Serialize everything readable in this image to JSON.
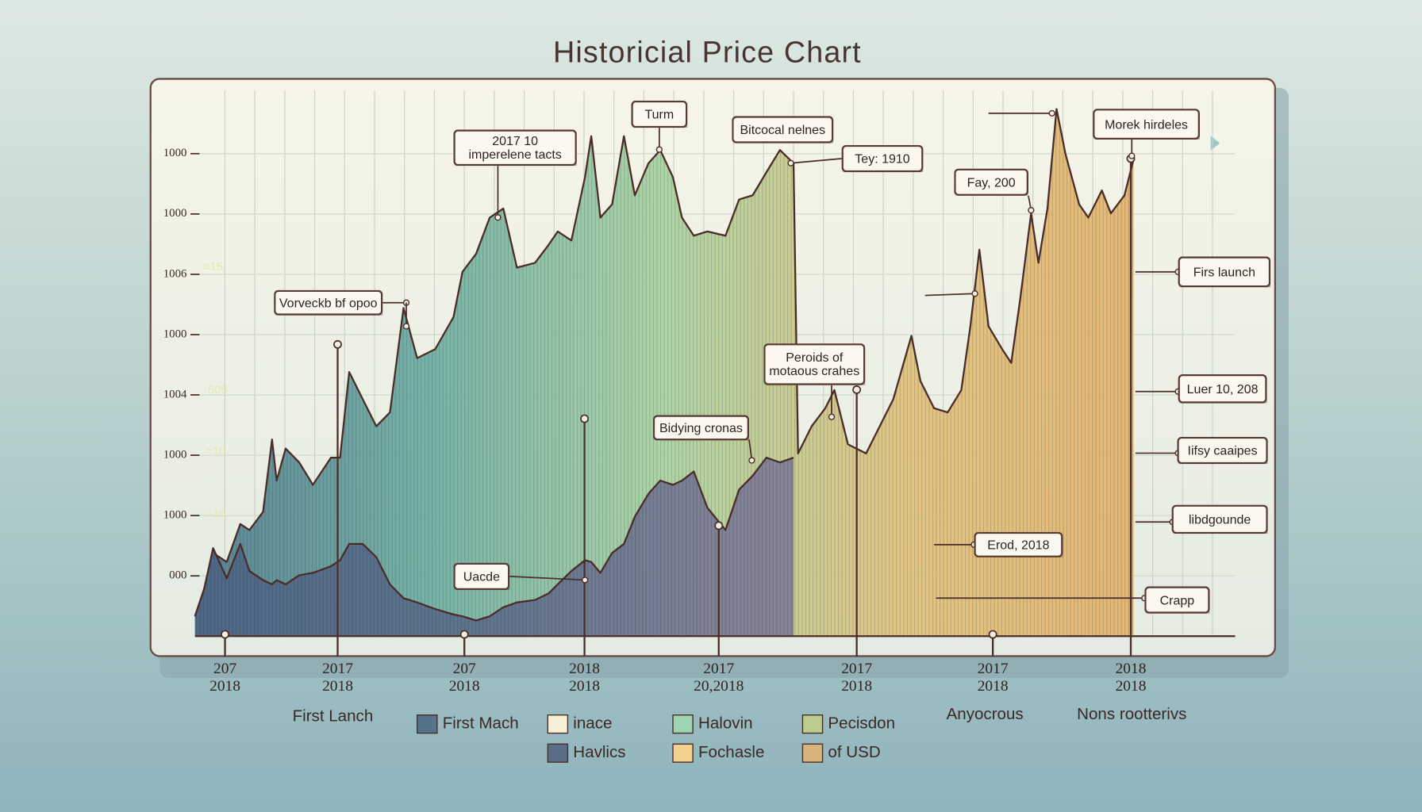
{
  "chart_data": {
    "type": "area",
    "title": "Historicial Price Chart",
    "x": [
      0,
      0.97,
      1.93,
      3.38,
      4.83,
      5.8,
      7.25,
      8.21,
      8.7,
      9.66,
      11.11,
      12.56,
      14.49,
      15.46,
      16.43,
      17.87,
      19.32,
      20.77,
      22.22,
      23.67,
      25.6,
      27.54,
      28.5,
      29.95,
      31.4,
      32.85,
      34.3,
      36.23,
      37.68,
      38.65,
      40.1,
      41.55,
      42.22,
      43.19,
      44.44,
      45.7,
      46.86,
      48.31,
      49.57,
      50.92,
      51.88,
      53.14,
      54.59,
      56.52,
      57.97,
      59.42,
      60.87,
      62.32,
      63.77,
      64.25,
      65.7,
      67.15,
      68.12,
      69.57,
      71.5,
      72.95,
      74.4,
      76.33,
      77.29,
      78.74,
      80.19,
      81.64,
      82.61,
      83.57,
      84.54,
      85.99,
      86.96,
      87.92,
      89.08,
      89.86,
      90.82,
      91.79,
      92.75,
      94.2,
      95.17,
      96.62,
      97.58,
      99.03,
      100
    ],
    "series": [
      {
        "color": "#4a2c28",
        "fill": [
          "#4f7b8c",
          "#6eaea3",
          "#a9d2a0",
          "#e0c27c",
          "#e4b36c"
        ],
        "values": [
          0.33,
          0.78,
          1.38,
          1.23,
          1.86,
          1.76,
          2.06,
          3.26,
          2.58,
          3.11,
          2.88,
          2.51,
          2.96,
          2.96,
          4.38,
          3.93,
          3.48,
          3.71,
          5.44,
          4.61,
          4.76,
          5.29,
          6.04,
          6.34,
          6.94,
          7.09,
          6.11,
          6.19,
          6.49,
          6.71,
          6.56,
          7.61,
          8.29,
          6.94,
          7.16,
          8.29,
          7.31,
          7.84,
          8.06,
          7.61,
          6.94,
          6.64,
          6.71,
          6.64,
          7.24,
          7.31,
          7.69,
          8.06,
          7.84,
          3.03,
          3.48,
          3.78,
          4.08,
          3.18,
          3.03,
          3.48,
          3.93,
          4.98,
          4.23,
          3.78,
          3.71,
          4.08,
          5.14,
          6.41,
          5.14,
          4.76,
          4.53,
          5.59,
          7.01,
          6.19,
          7.09,
          8.74,
          7.99,
          7.16,
          6.94,
          7.39,
          7.01,
          7.31,
          7.91
        ]
      },
      {
        "color": "#4a2c28",
        "fill": [
          "#4d6585",
          "#5e6f8a",
          "#857e98"
        ],
        "values": [
          0.33,
          0.78,
          1.46,
          0.96,
          1.53,
          1.08,
          0.93,
          0.86,
          0.93,
          0.86,
          1.01,
          1.05,
          1.16,
          1.26,
          1.53,
          1.53,
          1.31,
          0.86,
          0.63,
          0.56,
          0.45,
          0.36,
          0.33,
          0.26,
          0.33,
          0.48,
          0.56,
          0.6,
          0.71,
          0.86,
          1.08,
          1.26,
          1.23,
          1.05,
          1.38,
          1.53,
          1.98,
          2.36,
          2.58,
          2.51,
          2.58,
          2.73,
          2.13,
          1.76,
          2.43,
          2.66,
          2.96,
          2.88,
          2.96,
          null,
          null,
          null,
          null,
          null,
          null,
          null,
          null,
          null,
          null,
          null,
          null,
          null,
          null,
          null,
          null,
          null,
          null,
          null,
          null,
          null,
          null,
          null,
          null,
          null,
          null,
          null,
          null,
          null,
          null
        ]
      }
    ],
    "xlim": [
      0,
      100
    ],
    "ylim": [
      0,
      9
    ],
    "yticks": [
      {
        "value": 1,
        "label": "000"
      },
      {
        "value": 2,
        "label": "1000"
      },
      {
        "value": 3,
        "label": "1000"
      },
      {
        "value": 4,
        "label": "1004"
      },
      {
        "value": 5,
        "label": "1000"
      },
      {
        "value": 6,
        "label": "1006"
      },
      {
        "value": 7,
        "label": "1000"
      },
      {
        "value": 8,
        "label": "1000"
      }
    ],
    "side_labels": [
      "≈15",
      "≈10",
      "505",
      "≡15"
    ],
    "xticks": [
      {
        "value": 3.2,
        "label": "207\n2018"
      },
      {
        "value": 15.2,
        "label": "2017\n2018"
      },
      {
        "value": 28.7,
        "label": "207\n2018"
      },
      {
        "value": 41.5,
        "label": "2018\n2018"
      },
      {
        "value": 55.8,
        "label": "2017\n20,2018"
      },
      {
        "value": 70.5,
        "label": "2017\n2018"
      },
      {
        "value": 85,
        "label": "2017\n2018"
      },
      {
        "value": 99.7,
        "label": "2018\n2018"
      }
    ],
    "grid": true,
    "annotations": [
      "2017 10\nimperelene tacts",
      "Turm",
      "Bitcocal nelnes",
      "Tey: 1910",
      "Fay, 200",
      "Morek hirdeles",
      "Vorveckb bf opoo",
      "Peroids of\nmotaous crahes",
      "Bidying cronas",
      "Uacde",
      "Erod, 2018",
      "Firs launch",
      "Luer 10, 208",
      "Iifsy caaipes",
      "libdgounde",
      "Crapp"
    ],
    "footer_labels": [
      "First Lanch",
      "Anyocrous",
      "Nons rootterivs"
    ],
    "legend": [
      {
        "label": "First Mach",
        "color": "#56738c"
      },
      {
        "label": "inace",
        "color": "#f6f0d6"
      },
      {
        "label": "Halovin",
        "color": "#9fd4b2"
      },
      {
        "label": "Pecisdon",
        "color": "#bccb8e"
      },
      {
        "label": "Havlics",
        "color": "#5b6e88"
      },
      {
        "label": "Fochasle",
        "color": "#f3d08e"
      },
      {
        "label": "of USD",
        "color": "#d8b47c"
      }
    ]
  }
}
